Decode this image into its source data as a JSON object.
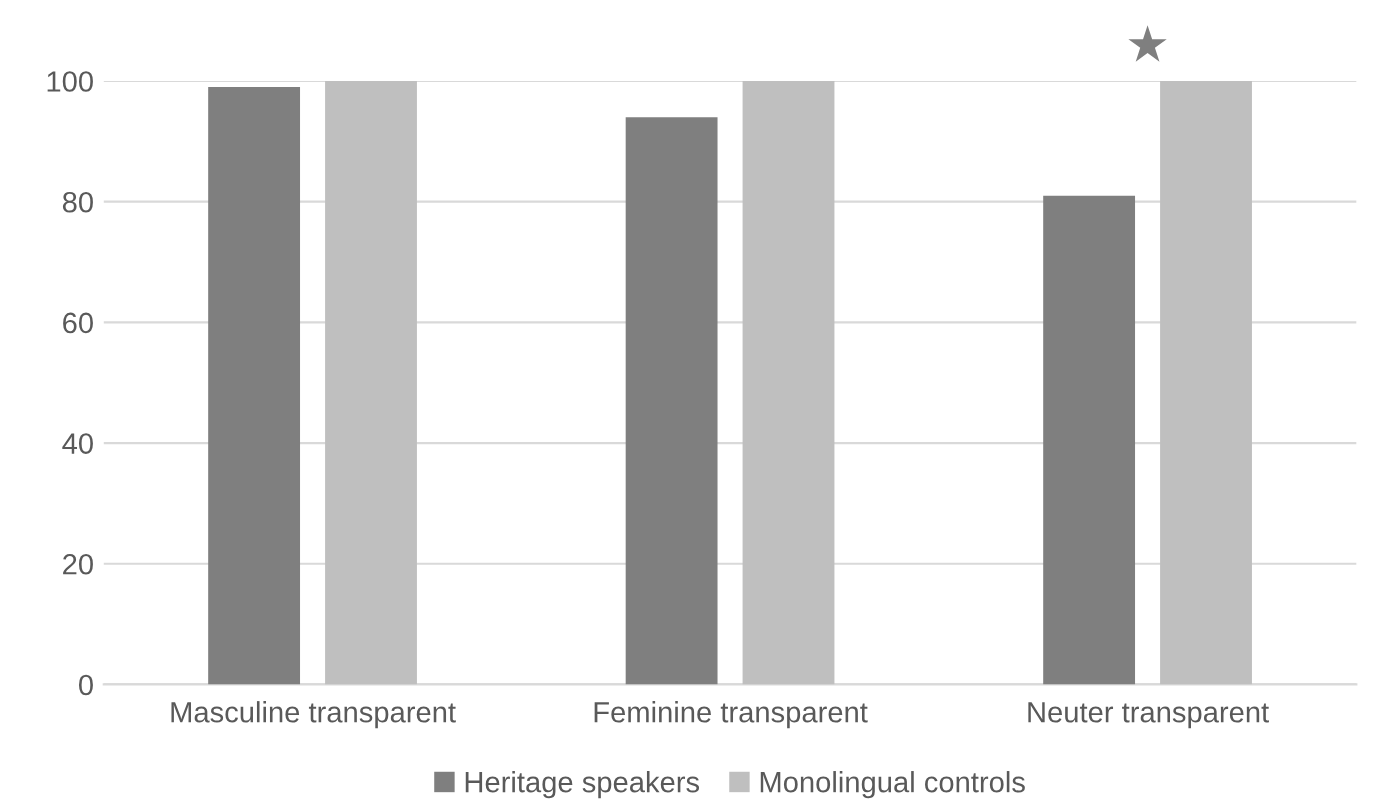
{
  "chart_data": {
    "type": "bar",
    "categories": [
      "Masculine transparent",
      "Feminine transparent",
      "Neuter transparent"
    ],
    "series": [
      {
        "name": "Heritage speakers",
        "color": "#7f7f7f",
        "values": [
          99,
          94,
          81
        ]
      },
      {
        "name": "Monolingual controls",
        "color": "#bfbfbf",
        "values": [
          100,
          100,
          100
        ]
      }
    ],
    "ylim": [
      0,
      100
    ],
    "yticks": [
      0,
      20,
      40,
      60,
      80,
      100
    ],
    "grid": "y",
    "legend": "bottom",
    "annotations": [
      "★"
    ]
  }
}
